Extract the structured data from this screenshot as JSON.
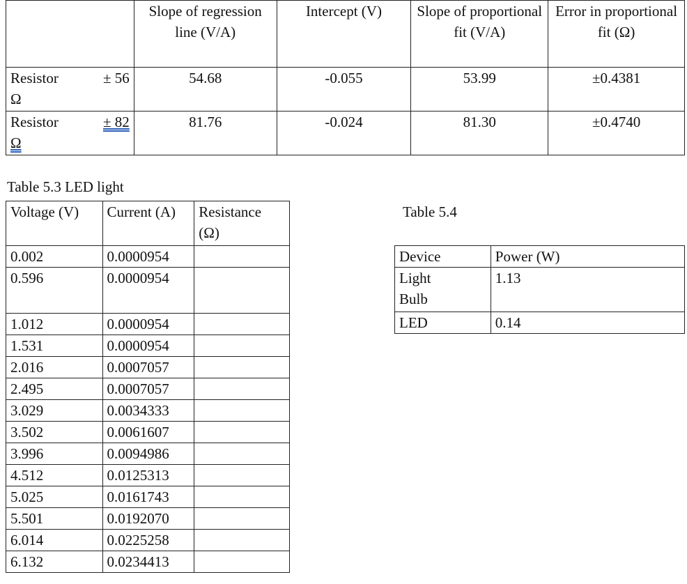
{
  "regression_table": {
    "headers": [
      "",
      "Slope of regression line (V/A)",
      "Intercept (V)",
      "Slope of proportional fit (V/A)",
      "Error in proportional fit (Ω)"
    ],
    "rows": [
      {
        "label": "Resistor",
        "value": "± 56",
        "unit": "Ω",
        "slope": "54.68",
        "intercept": "-0.055",
        "prop_slope": "53.99",
        "error": "±0.4381"
      },
      {
        "label": "Resistor",
        "value": "± 82",
        "unit": "Ω",
        "slope": "81.76",
        "intercept": "-0.024",
        "prop_slope": "81.30",
        "error": "±0.4740"
      }
    ]
  },
  "led_table": {
    "caption": "Table 5.3 LED light",
    "headers": [
      "Voltage (V)",
      "Current (A)",
      "Resistance (Ω)"
    ],
    "rows": [
      {
        "voltage": "0.002",
        "current": "0.0000954",
        "resistance": ""
      },
      {
        "voltage": "0.596",
        "current": "0.0000954",
        "resistance": ""
      },
      {
        "voltage": "1.012",
        "current": "0.0000954",
        "resistance": ""
      },
      {
        "voltage": "1.531",
        "current": "0.0000954",
        "resistance": ""
      },
      {
        "voltage": "2.016",
        "current": "0.0007057",
        "resistance": ""
      },
      {
        "voltage": "2.495",
        "current": "0.0007057",
        "resistance": ""
      },
      {
        "voltage": "3.029",
        "current": "0.0034333",
        "resistance": ""
      },
      {
        "voltage": "3.502",
        "current": "0.0061607",
        "resistance": ""
      },
      {
        "voltage": "3.996",
        "current": "0.0094986",
        "resistance": ""
      },
      {
        "voltage": "4.512",
        "current": "0.0125313",
        "resistance": ""
      },
      {
        "voltage": "5.025",
        "current": "0.0161743",
        "resistance": ""
      },
      {
        "voltage": "5.501",
        "current": "0.0192070",
        "resistance": ""
      },
      {
        "voltage": "6.014",
        "current": "0.0225258",
        "resistance": ""
      },
      {
        "voltage": "6.132",
        "current": "0.0234413",
        "resistance": ""
      }
    ]
  },
  "power_table": {
    "caption": "Table 5.4",
    "headers": [
      "Device",
      "Power (W)"
    ],
    "rows": [
      {
        "device": "Light Bulb",
        "power": "1.13"
      },
      {
        "device": "LED",
        "power": "0.14"
      }
    ]
  }
}
